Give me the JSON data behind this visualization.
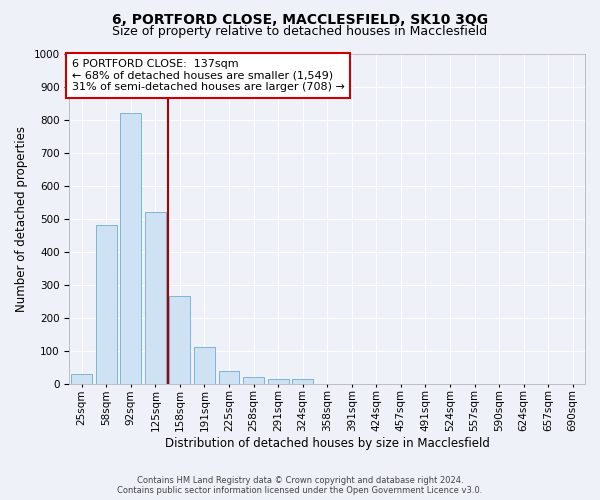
{
  "title": "6, PORTFORD CLOSE, MACCLESFIELD, SK10 3QG",
  "subtitle": "Size of property relative to detached houses in Macclesfield",
  "xlabel": "Distribution of detached houses by size in Macclesfield",
  "ylabel": "Number of detached properties",
  "bar_labels": [
    "25sqm",
    "58sqm",
    "92sqm",
    "125sqm",
    "158sqm",
    "191sqm",
    "225sqm",
    "258sqm",
    "291sqm",
    "324sqm",
    "358sqm",
    "391sqm",
    "424sqm",
    "457sqm",
    "491sqm",
    "524sqm",
    "557sqm",
    "590sqm",
    "624sqm",
    "657sqm",
    "690sqm"
  ],
  "bar_values": [
    30,
    480,
    820,
    520,
    265,
    110,
    40,
    20,
    15,
    15,
    0,
    0,
    0,
    0,
    0,
    0,
    0,
    0,
    0,
    0,
    0
  ],
  "ylim": [
    0,
    1000
  ],
  "bar_color": "#cfe2f3",
  "bar_edge_color": "#7cb4d4",
  "vline_x": 3.5,
  "vline_color": "#aa0000",
  "annotation_text": "6 PORTFORD CLOSE:  137sqm\n← 68% of detached houses are smaller (1,549)\n31% of semi-detached houses are larger (708) →",
  "annotation_box_color": "#ffffff",
  "annotation_box_edge": "#cc0000",
  "background_color": "#eef2f8",
  "grid_color": "#ffffff",
  "title_fontsize": 10,
  "subtitle_fontsize": 9,
  "label_fontsize": 8.5,
  "tick_fontsize": 7.5,
  "footer_text": "Contains HM Land Registry data © Crown copyright and database right 2024.\nContains public sector information licensed under the Open Government Licence v3.0."
}
